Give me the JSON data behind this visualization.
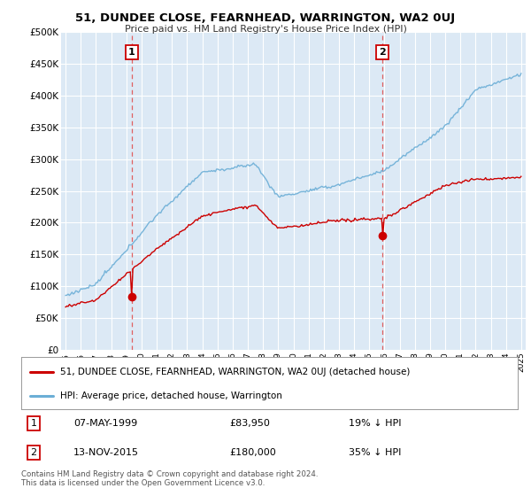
{
  "title": "51, DUNDEE CLOSE, FEARNHEAD, WARRINGTON, WA2 0UJ",
  "subtitle": "Price paid vs. HM Land Registry's House Price Index (HPI)",
  "background_color": "#ffffff",
  "plot_bg_color": "#dce9f5",
  "grid_color": "#ffffff",
  "ylim": [
    0,
    500000
  ],
  "yticks": [
    0,
    50000,
    100000,
    150000,
    200000,
    250000,
    300000,
    350000,
    400000,
    450000,
    500000
  ],
  "ytick_labels": [
    "£0",
    "£50K",
    "£100K",
    "£150K",
    "£200K",
    "£250K",
    "£300K",
    "£350K",
    "£400K",
    "£450K",
    "£500K"
  ],
  "sale1_year": 1999.36,
  "sale1_price": 83950,
  "sale1_label": "1",
  "sale1_date": "07-MAY-1999",
  "sale1_pct": "19% ↓ HPI",
  "sale2_year": 2015.87,
  "sale2_price": 180000,
  "sale2_label": "2",
  "sale2_date": "13-NOV-2015",
  "sale2_pct": "35% ↓ HPI",
  "red_line_color": "#cc0000",
  "blue_line_color": "#6baed6",
  "vline_color": "#e06060",
  "marker_color": "#cc0000",
  "legend_label1": "51, DUNDEE CLOSE, FEARNHEAD, WARRINGTON, WA2 0UJ (detached house)",
  "legend_label2": "HPI: Average price, detached house, Warrington",
  "footer": "Contains HM Land Registry data © Crown copyright and database right 2024.\nThis data is licensed under the Open Government Licence v3.0.",
  "xstart": 1995,
  "xend": 2025
}
